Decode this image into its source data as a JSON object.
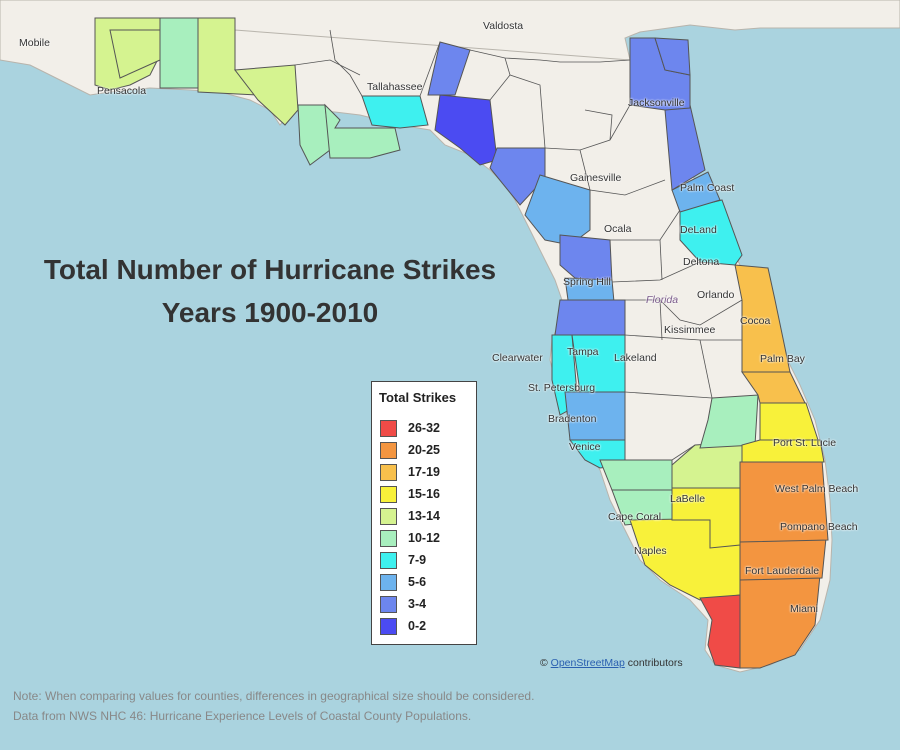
{
  "map": {
    "title_line1": "Total Number of Hurricane Strikes",
    "title_line2": "Years 1900-2010",
    "legend": {
      "title": "Total Strikes",
      "items": [
        {
          "label": "26-32",
          "color": "#f04b47"
        },
        {
          "label": "20-25",
          "color": "#f39540"
        },
        {
          "label": "17-19",
          "color": "#f8c04c"
        },
        {
          "label": "15-16",
          "color": "#f8f13a"
        },
        {
          "label": "13-14",
          "color": "#d5f390"
        },
        {
          "label": "10-12",
          "color": "#a8efbe"
        },
        {
          "label": "7-9",
          "color": "#3ef0ef"
        },
        {
          "label": "5-6",
          "color": "#6db3ee"
        },
        {
          "label": "3-4",
          "color": "#6d86ee"
        },
        {
          "label": "0-2",
          "color": "#4b4bf2"
        }
      ]
    },
    "cities": [
      "Valdosta",
      "Mobile",
      "Pensacola",
      "Tallahassee",
      "Jacksonville",
      "Palm Coast",
      "Gainesville",
      "Ocala",
      "Deltona",
      "Spring Hill",
      "Orlando",
      "Florida",
      "Kissimmee",
      "Clearwater",
      "Tampa",
      "Lakeland",
      "St. Petersburg",
      "Bradenton",
      "Venice",
      "Port St. Lucie",
      "LaBelle",
      "Cape Coral",
      "Naples",
      "West Palm Beach",
      "Pompano Beach",
      "Fort Lauderdale",
      "Miami",
      "Cocoa",
      "Palm Bay",
      "DeLand"
    ],
    "attribution": {
      "prefix": "©",
      "link": "OpenStreetMap",
      "suffix": "contributors"
    },
    "note_line1": "Note: When comparing values for counties, differences in geographical size should be considered.",
    "note_line2": "Data from NWS NHC 46: Hurricane Experience Levels of Coastal County Populations."
  }
}
